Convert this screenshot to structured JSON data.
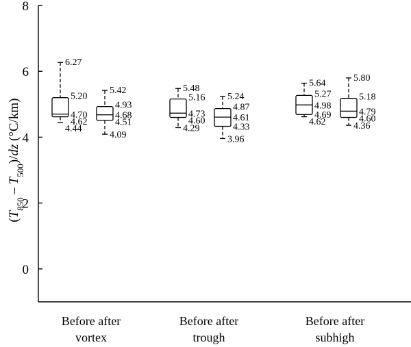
{
  "chart_data": {
    "type": "box",
    "ylabel": {
      "parts": [
        {
          "t": "("
        },
        {
          "t": "T",
          "italic": true
        },
        {
          "t": "850",
          "sub": true
        },
        {
          "t": " – "
        },
        {
          "t": "T",
          "italic": true
        },
        {
          "t": "500",
          "sub": true
        },
        {
          "t": ")/"
        },
        {
          "t": "dz",
          "italic": true
        },
        {
          "t": " (°C/km)"
        }
      ]
    },
    "ylim": [
      -1,
      8
    ],
    "yticks": [
      0,
      2,
      4,
      6,
      8
    ],
    "groups": [
      {
        "label_lines": [
          "Before after",
          "vortex"
        ]
      },
      {
        "label_lines": [
          "Before after",
          "trough"
        ]
      },
      {
        "label_lines": [
          "Before after",
          "subhigh"
        ]
      }
    ],
    "boxes": [
      {
        "group": 0,
        "slot": 0,
        "max": 6.27,
        "q3": 5.2,
        "median": 4.7,
        "q1": 4.62,
        "min": 4.44,
        "labels": {
          "max": "6.27",
          "q3": "5.20",
          "median": "4.70",
          "q1": "4.62",
          "min": "4.44"
        }
      },
      {
        "group": 0,
        "slot": 1,
        "max": 5.42,
        "q3": 4.93,
        "median": 4.68,
        "q1": 4.51,
        "min": 4.09,
        "labels": {
          "max": "5.42",
          "q3": "4.93",
          "median": "4.68",
          "q1": "4.51",
          "min": "4.09"
        }
      },
      {
        "group": 1,
        "slot": 0,
        "max": 5.48,
        "q3": 5.16,
        "median": 4.73,
        "q1": 4.6,
        "min": 4.29,
        "labels": {
          "max": "5.48",
          "q3": "5.16",
          "median": "4.73",
          "q1": "4.60",
          "min": "4.29"
        }
      },
      {
        "group": 1,
        "slot": 1,
        "max": 5.24,
        "q3": 4.87,
        "median": 4.61,
        "q1": 4.33,
        "min": 3.96,
        "labels": {
          "max": "5.24",
          "q3": "4.87",
          "median": "4.61",
          "q1": "4.33",
          "min": "3.96"
        }
      },
      {
        "group": 2,
        "slot": 0,
        "max": 5.64,
        "q3": 5.27,
        "median": 4.98,
        "q1": 4.69,
        "min": 4.62,
        "labels": {
          "max": "5.64",
          "q3": "5.27",
          "median": "4.98",
          "q1": "4.69",
          "min": "4.62"
        }
      },
      {
        "group": 2,
        "slot": 1,
        "max": 5.8,
        "q3": 5.18,
        "median": 4.79,
        "q1": 4.6,
        "min": 4.36,
        "labels": {
          "max": "5.80",
          "q3": "5.18",
          "median": "4.79",
          "q1": "4.60",
          "min": "4.36"
        }
      }
    ],
    "grid": false,
    "legend": "none",
    "colors": {
      "line": "#000000",
      "background": "#ffffff"
    }
  }
}
